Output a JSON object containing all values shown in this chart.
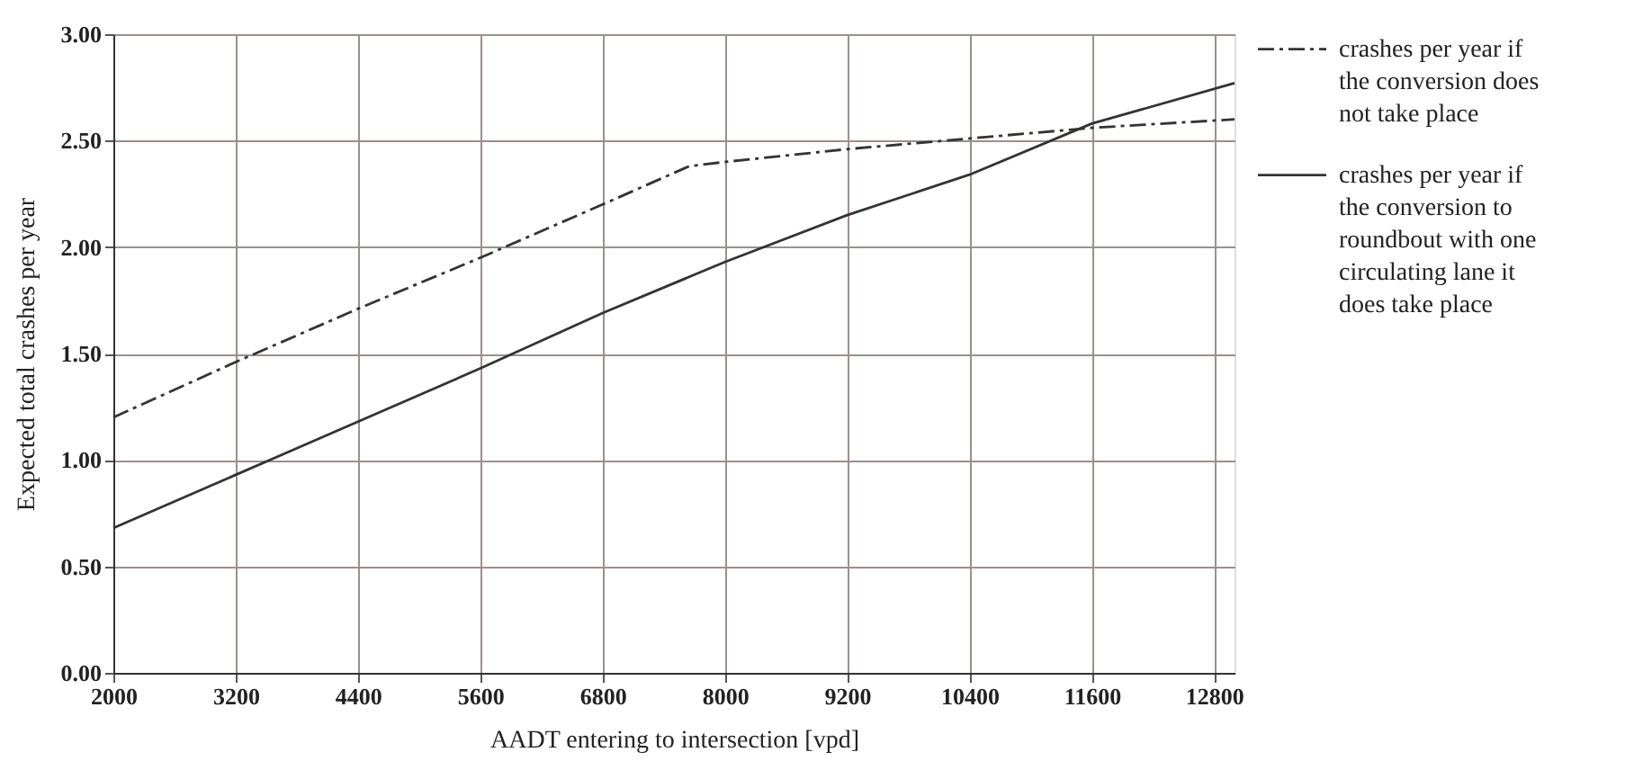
{
  "chart_data": {
    "type": "line",
    "xlabel": "AADT entering to intersection [vpd]",
    "ylabel": "Expected total crashes per year",
    "x": [
      2000,
      3200,
      4400,
      5600,
      6800,
      7650,
      8000,
      9200,
      10400,
      11600,
      13000
    ],
    "series": [
      {
        "name": "crashes per year if the conversion does not take place",
        "color": "#333333",
        "line_style": "dashdot",
        "values": [
          1.2,
          1.46,
          1.71,
          1.95,
          2.2,
          2.38,
          2.4,
          2.46,
          2.51,
          2.56,
          2.6
        ]
      },
      {
        "name": "crashes per year if the conversion to roundbout with one circulating lane it does take place",
        "color": "#333333",
        "line_style": "solid",
        "values": [
          0.68,
          0.93,
          1.18,
          1.43,
          1.69,
          1.86,
          1.93,
          2.15,
          2.34,
          2.58,
          2.77
        ]
      }
    ],
    "xlim": [
      2000,
      13000
    ],
    "xticks": [
      2000,
      3200,
      4400,
      5600,
      6800,
      8000,
      9200,
      10400,
      11600,
      12800
    ],
    "ylim": [
      0,
      3
    ],
    "yticks": [
      {
        "value": 0,
        "label": "0.00"
      },
      {
        "value": 0.5,
        "label": "0.50"
      },
      {
        "value": 1,
        "label": "1.00"
      },
      {
        "value": 1.5,
        "label": "1.50"
      },
      {
        "value": 2,
        "label": "2.00"
      },
      {
        "value": 2.5,
        "label": "2.50"
      },
      {
        "value": 3,
        "label": "3.00"
      }
    ],
    "grid": true,
    "legend": "right",
    "marker": "none"
  }
}
